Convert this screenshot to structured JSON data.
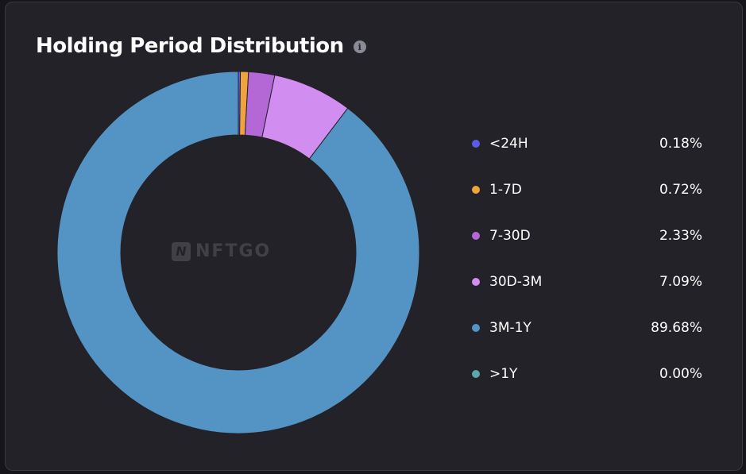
{
  "header": {
    "title": "Holding Period Distribution",
    "info_icon": "info-icon"
  },
  "watermark": {
    "text": "NFTGO",
    "logo_letter": "N"
  },
  "chart_data": {
    "type": "pie",
    "donut": true,
    "title": "Holding Period Distribution",
    "categories": [
      "<24H",
      "1-7D",
      "7-30D",
      "30D-3M",
      "3M-1Y",
      ">1Y"
    ],
    "values": [
      0.18,
      0.72,
      2.33,
      7.09,
      89.68,
      0.0
    ],
    "value_labels": [
      "0.18%",
      "0.72%",
      "2.33%",
      "7.09%",
      "89.68%",
      "0.00%"
    ],
    "colors": [
      "#5b5ce6",
      "#f0a33c",
      "#b368d6",
      "#d28df0",
      "#5494c4",
      "#5aa8a8"
    ],
    "legend_placement": "right",
    "start_angle_deg": 0,
    "direction": "clockwise"
  }
}
